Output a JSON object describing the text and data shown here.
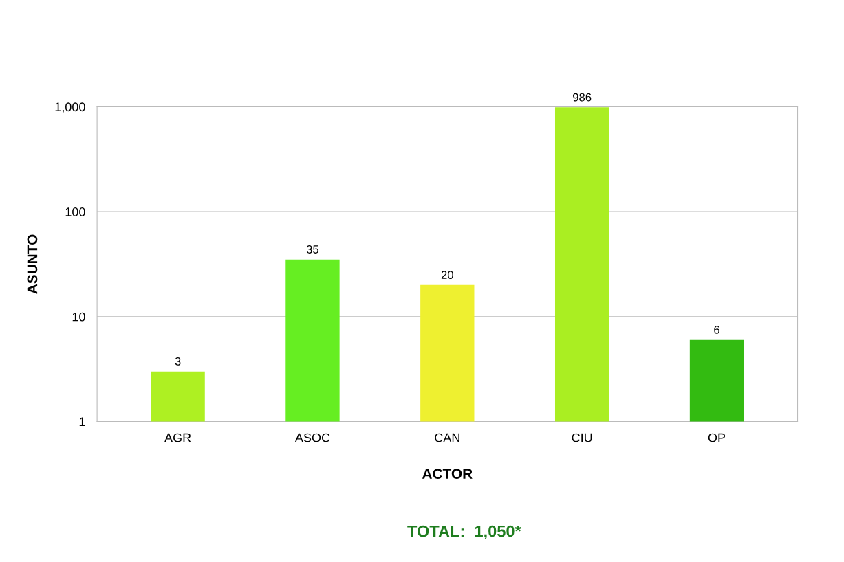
{
  "chart_data": {
    "type": "bar",
    "xlabel": "ACTOR",
    "ylabel": "ASUNTO",
    "categories": [
      "AGR",
      "ASOC",
      "CAN",
      "CIU",
      "OP"
    ],
    "values": [
      3,
      35,
      20,
      986,
      6
    ],
    "colors": [
      "#aef022",
      "#66ee22",
      "#eef030",
      "#aaee22",
      "#33bb11"
    ],
    "log": "y",
    "ylim": [
      1,
      1000
    ],
    "yticks": [
      1,
      10,
      100,
      {
        "value": 1000,
        "label": "1,000"
      }
    ],
    "grid": "y",
    "data_labels": true,
    "annotations": [
      "TOTAL:  1,050*"
    ]
  }
}
